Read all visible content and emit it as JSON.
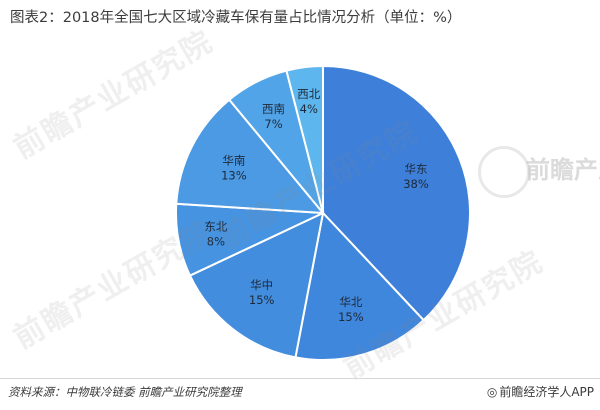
{
  "title": "图表2：2018年全国七大区域冷藏车保有量占比情况分析（单位：%）",
  "chart_data": {
    "type": "pie",
    "title": "图表2：2018年全国七大区域冷藏车保有量占比情况分析（单位：%）",
    "unit": "%",
    "categories": [
      "华东",
      "华北",
      "华中",
      "东北",
      "华南",
      "西南",
      "西北"
    ],
    "values": [
      38,
      15,
      15,
      8,
      13,
      7,
      4
    ],
    "value_labels": [
      "38%",
      "15%",
      "15%",
      "8%",
      "13%",
      "7%",
      "4%"
    ],
    "colors": [
      "#3d7fd9",
      "#3f86dd",
      "#428dde",
      "#4693e1",
      "#4b9ae3",
      "#52a4e8",
      "#5db7ee"
    ],
    "start_angle_deg": 0,
    "direction": "clockwise",
    "slice_border": "#ffffff",
    "legend": "none"
  },
  "footer": {
    "source": "资料来源：中物联冷链委 前瞻产业研究院整理",
    "brand": "前瞻经济学人APP",
    "brand_icon": "brand-logo-icon"
  },
  "watermark": {
    "text": "前瞻产业研究院"
  }
}
